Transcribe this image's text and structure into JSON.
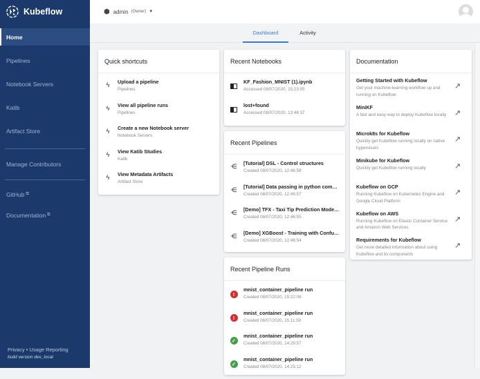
{
  "brand": "Kubeflow",
  "sidebar": {
    "items": [
      {
        "label": "Home"
      },
      {
        "label": "Pipelines"
      },
      {
        "label": "Notebook Servers"
      },
      {
        "label": "Katib"
      },
      {
        "label": "Artifact Store"
      },
      {
        "label": "Manage Contributors"
      },
      {
        "label": "GitHub"
      },
      {
        "label": "Documentation"
      }
    ],
    "privacy": "Privacy",
    "dot": "•",
    "usage": "Usage Reporting",
    "build": "build version dev_local"
  },
  "namespace": {
    "name": "admin",
    "role": "(Owner)"
  },
  "tabs": [
    {
      "label": "Dashboard"
    },
    {
      "label": "Activity"
    }
  ],
  "shortcuts": {
    "title": "Quick shortcuts",
    "items": [
      {
        "title": "Upload a pipeline",
        "sub": "Pipelines"
      },
      {
        "title": "View all pipeline runs",
        "sub": "Pipelines"
      },
      {
        "title": "Create a new Notebook server",
        "sub": "Notebook Servers"
      },
      {
        "title": "View Katib Studies",
        "sub": "Katib"
      },
      {
        "title": "View Metadata Artifacts",
        "sub": "Artifact Store"
      }
    ]
  },
  "notebooks": {
    "title": "Recent Notebooks",
    "items": [
      {
        "title": "KF_Fashion_MNIST (1).ipynb",
        "sub": "Accessed 08/07/2020, 15:23:05"
      },
      {
        "title": "lost+found",
        "sub": "Accessed 08/07/2020, 13:46:37"
      }
    ]
  },
  "pipelines": {
    "title": "Recent Pipelines",
    "items": [
      {
        "title": "[Tutorial] DSL - Control structures",
        "sub": "Created 08/07/2020, 12:46:58"
      },
      {
        "title": "[Tutorial] Data passing in python components",
        "sub": "Created 08/07/2020, 12:46:57"
      },
      {
        "title": "[Demo] TFX - Taxi Tip Prediction Model Trainer",
        "sub": "Created 08/07/2020, 12:46:55"
      },
      {
        "title": "[Demo] XGBoost - Training with Confusion Matrix",
        "sub": "Created 08/07/2020, 12:46:54"
      }
    ]
  },
  "runs": {
    "title": "Recent Pipeline Runs",
    "items": [
      {
        "title": "mnist_container_pipeline run",
        "sub": "Created 08/07/2020, 15:22:08",
        "status": "error"
      },
      {
        "title": "mnist_container_pipeline run",
        "sub": "Created 08/07/2020, 15:11:50",
        "status": "error"
      },
      {
        "title": "mnist_container_pipeline run",
        "sub": "Created 08/07/2020, 14:29:57",
        "status": "success"
      },
      {
        "title": "mnist_container_pipeline run",
        "sub": "Created 08/07/2020, 14:25:12",
        "status": "success"
      }
    ]
  },
  "docs": {
    "title": "Documentation",
    "items": [
      {
        "title": "Getting Started with Kubeflow",
        "sub": "Get your machine-learning workflow up and running on Kubeflow"
      },
      {
        "title": "MiniKF",
        "sub": "A fast and easy way to deploy Kubeflow locally"
      },
      {
        "title": "Microk8s for Kubeflow",
        "sub": "Quickly get Kubeflow running locally on native hypervisors"
      },
      {
        "title": "Minikube for Kubeflow",
        "sub": "Quickly get Kubeflow running locally"
      },
      {
        "title": "Kubeflow on GCP",
        "sub": "Running Kubeflow on Kubernetes Engine and Google Cloud Platform"
      },
      {
        "title": "Kubeflow on AWS",
        "sub": "Running Kubeflow on Elastic Container Service and Amazon Web Services"
      },
      {
        "title": "Requirements for Kubeflow",
        "sub": "Get more detailed information about using Kubeflow and its components"
      }
    ]
  },
  "colors": {
    "sidebar": "#1b3a6b",
    "accent": "#3c7bd4",
    "error": "#d32f2f",
    "success": "#43a047"
  }
}
